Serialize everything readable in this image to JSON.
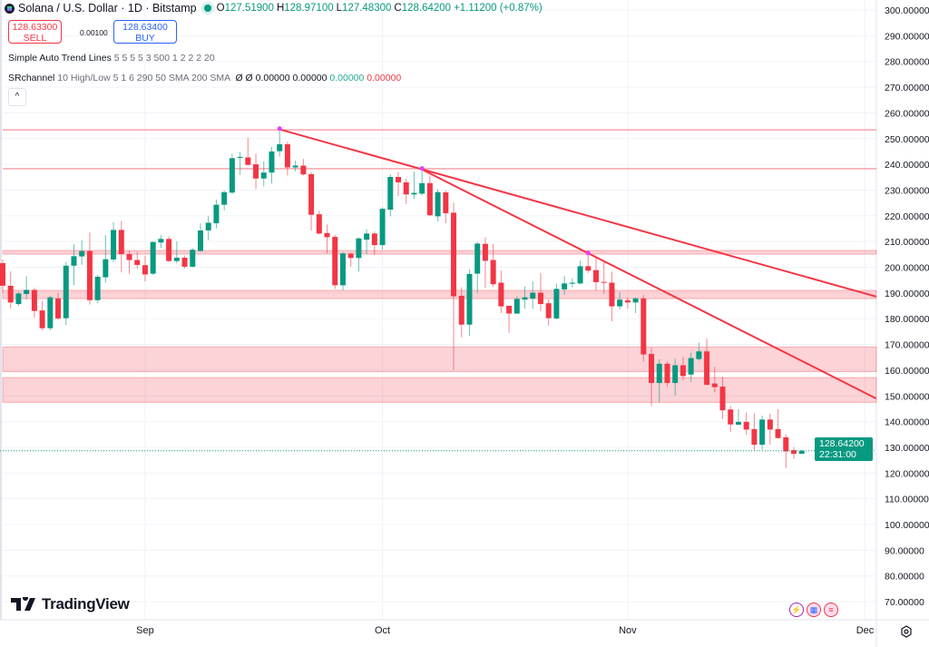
{
  "header": {
    "symbol_title": "Solana / U.S. Dollar · 1D · Bitstamp",
    "market_status": "open",
    "ohlc": {
      "o_label": "O",
      "o": "127.51900",
      "h_label": "H",
      "h": "128.97100",
      "l_label": "L",
      "l": "127.48300",
      "c_label": "C",
      "c": "128.64200"
    },
    "change": "+1.11200 (+0.87%)"
  },
  "trade": {
    "sell_price": "128.63300",
    "sell_label": "SELL",
    "spread": "0.00100",
    "buy_price": "128.63400",
    "buy_label": "BUY"
  },
  "indicators": [
    {
      "name": "Simple Auto Trend Lines",
      "params": "5 5 5 5 3 500 1 2 2 2 20"
    },
    {
      "name": "SRchannel",
      "params": "10 High/Low 5 1 6 290 50 SMA 200 SMA",
      "values": [
        "Ø",
        "Ø",
        "0.00000",
        "0.00000"
      ],
      "value_green": "0.00000",
      "value_red": "0.00000"
    }
  ],
  "collapse_label": "^",
  "brand": "TradingView",
  "last_price": {
    "price": "128.64200",
    "countdown": "22:31:00"
  },
  "colors": {
    "up": "#089981",
    "down": "#f23645",
    "zone": "#f23645",
    "trend": "#f23645",
    "pivot": "#e040fb",
    "grid": "#f0f3fa"
  },
  "chart_data": {
    "type": "candlestick",
    "title": "Solana / U.S. Dollar · 1D · Bitstamp",
    "ylim": [
      67,
      303
    ],
    "y_ticks": [
      "300.00000",
      "290.00000",
      "280.00000",
      "270.00000",
      "260.00000",
      "250.00000",
      "240.00000",
      "230.00000",
      "220.00000",
      "210.00000",
      "200.00000",
      "190.00000",
      "180.00000",
      "170.00000",
      "160.00000",
      "150.00000",
      "140.00000",
      "130.00000",
      "120.00000",
      "110.00000",
      "100.00000",
      "90.00000",
      "80.00000",
      "70.00000"
    ],
    "x_ticks": [
      {
        "label": "Sep",
        "at_candle": 18
      },
      {
        "label": "Oct",
        "at_candle": 48
      },
      {
        "label": "Nov",
        "at_candle": 79
      },
      {
        "label": "Dec",
        "at_candle": 109
      }
    ],
    "grid": true,
    "candles_ohlc": [
      [
        201.6,
        203,
        190,
        192.8
      ],
      [
        192.8,
        198.4,
        184,
        186.3
      ],
      [
        185.7,
        190.5,
        185,
        189.8
      ],
      [
        189.6,
        196.5,
        187.5,
        191.2
      ],
      [
        191.2,
        192,
        180.5,
        183.0
      ],
      [
        183.2,
        187,
        175.5,
        176.3
      ],
      [
        176.3,
        189,
        175.5,
        188.3
      ],
      [
        187.9,
        190,
        179.5,
        180.1
      ],
      [
        180.2,
        202,
        177.5,
        200.6
      ],
      [
        200.6,
        209,
        193,
        204.3
      ],
      [
        204.2,
        210.5,
        201,
        206.3
      ],
      [
        206.3,
        213.5,
        185.5,
        187.2
      ],
      [
        187.2,
        197,
        186,
        196.3
      ],
      [
        196.1,
        212.5,
        194,
        203.1
      ],
      [
        203.0,
        217.5,
        202,
        214.5
      ],
      [
        214.5,
        218,
        198,
        205.1
      ],
      [
        205.1,
        206.5,
        197.5,
        202.8
      ],
      [
        202.8,
        206,
        199.5,
        200.9
      ],
      [
        200.8,
        204.5,
        194.5,
        197.2
      ],
      [
        197.5,
        210,
        197,
        209.8
      ],
      [
        209.6,
        212.5,
        207.5,
        211.0
      ],
      [
        211.0,
        212,
        202,
        202.4
      ],
      [
        202.4,
        210,
        201.5,
        203.7
      ],
      [
        203.7,
        204.5,
        199.5,
        200.2
      ],
      [
        200.2,
        207.5,
        200,
        206.8
      ],
      [
        206.3,
        217,
        206,
        214.3
      ],
      [
        214.3,
        220,
        210.5,
        217.3
      ],
      [
        217.1,
        226.3,
        215.1,
        224.3
      ],
      [
        224.3,
        229.8,
        222.1,
        229.2
      ],
      [
        229.0,
        244.1,
        228.6,
        242.4
      ],
      [
        242.5,
        244.8,
        235.9,
        242.9
      ],
      [
        242.7,
        250.4,
        239.4,
        239.8
      ],
      [
        240.0,
        244.1,
        230.4,
        234.5
      ],
      [
        234.5,
        241.2,
        231.5,
        236.8
      ],
      [
        236.8,
        246.8,
        232.5,
        245.0
      ],
      [
        245.1,
        253.9,
        243.0,
        247.8
      ],
      [
        247.8,
        248.8,
        235.7,
        238.8
      ],
      [
        238.8,
        241.5,
        237.3,
        239.5
      ],
      [
        239.5,
        242.1,
        235.7,
        236.1
      ],
      [
        236.2,
        237.0,
        214.3,
        220.4
      ],
      [
        220.6,
        221.9,
        212.7,
        213.1
      ],
      [
        213.3,
        216.6,
        205.4,
        211.7
      ],
      [
        211.8,
        212.7,
        191.6,
        193.0
      ],
      [
        193.0,
        205.9,
        191.0,
        205.4
      ],
      [
        205.3,
        205.7,
        200.2,
        203.6
      ],
      [
        203.6,
        211.6,
        198.3,
        211.2
      ],
      [
        210.7,
        214.8,
        205.1,
        213.1
      ],
      [
        213.1,
        213.9,
        204.7,
        208.6
      ],
      [
        208.6,
        223.3,
        206.9,
        222.7
      ],
      [
        222.4,
        236.2,
        219.8,
        235.1
      ],
      [
        235.1,
        237.1,
        227.7,
        233.0
      ],
      [
        233.0,
        234.5,
        224.5,
        228.3
      ],
      [
        228.3,
        237.2,
        226.5,
        228.9
      ],
      [
        228.6,
        238.4,
        228.0,
        232.7
      ],
      [
        232.7,
        235.7,
        219.8,
        220.2
      ],
      [
        219.8,
        230.4,
        217.8,
        229.2
      ],
      [
        229.1,
        229.8,
        217.1,
        221.0
      ],
      [
        221.2,
        225.1,
        160.2,
        188.7
      ],
      [
        188.9,
        192.2,
        172.8,
        177.7
      ],
      [
        177.7,
        199.2,
        173.4,
        197.4
      ],
      [
        197.5,
        209.8,
        190.1,
        209.2
      ],
      [
        209.1,
        211.6,
        191.8,
        202.5
      ],
      [
        202.8,
        209.1,
        192.4,
        193.4
      ],
      [
        194.0,
        198.7,
        182.2,
        184.8
      ],
      [
        185.0,
        185.1,
        174.5,
        182.0
      ],
      [
        182.0,
        188.7,
        181.8,
        187.7
      ],
      [
        187.4,
        192.5,
        183.9,
        188.3
      ],
      [
        187.8,
        194.5,
        183.9,
        190.1
      ],
      [
        190.1,
        197.8,
        183.0,
        185.7
      ],
      [
        186.0,
        187.5,
        177.3,
        180.2
      ],
      [
        180.1,
        193.7,
        179.8,
        191.6
      ],
      [
        191.4,
        196.7,
        189.3,
        193.7
      ],
      [
        193.6,
        195.7,
        192.2,
        194.0
      ],
      [
        193.7,
        202.5,
        193.4,
        200.4
      ],
      [
        200.4,
        205.5,
        197.8,
        198.7
      ],
      [
        198.9,
        203.9,
        190.8,
        194.2
      ],
      [
        194.3,
        202.2,
        189.6,
        194.1
      ],
      [
        194.0,
        198.3,
        179.0,
        184.8
      ],
      [
        184.8,
        190.4,
        183.7,
        187.4
      ],
      [
        187.2,
        188.1,
        183.9,
        186.3
      ],
      [
        186.3,
        188.3,
        182.2,
        187.9
      ],
      [
        187.9,
        189.2,
        163.4,
        166.1
      ],
      [
        166.3,
        168.7,
        146.0,
        155.0
      ],
      [
        155.0,
        164.2,
        147.5,
        162.5
      ],
      [
        162.5,
        163.4,
        153.6,
        155.0
      ],
      [
        155.0,
        164.5,
        150.1,
        161.9
      ],
      [
        161.9,
        165.1,
        156.0,
        157.7
      ],
      [
        158.3,
        166.8,
        155.4,
        164.7
      ],
      [
        164.3,
        170.8,
        163.7,
        167.3
      ],
      [
        167.3,
        172.4,
        154.0,
        154.3
      ],
      [
        154.8,
        161.3,
        151.3,
        153.4
      ],
      [
        153.6,
        157.4,
        141.0,
        144.4
      ],
      [
        144.7,
        146.1,
        136.0,
        138.9
      ],
      [
        138.8,
        144.8,
        138.6,
        139.9
      ],
      [
        139.9,
        143.6,
        134.8,
        136.9
      ],
      [
        137.1,
        143.1,
        129.0,
        131.0
      ],
      [
        131.0,
        142.3,
        129.0,
        140.8
      ],
      [
        140.8,
        143.1,
        131.0,
        136.9
      ],
      [
        137.1,
        144.8,
        133.4,
        133.6
      ],
      [
        133.9,
        135.1,
        121.9,
        128.4
      ],
      [
        128.9,
        130.1,
        125.5,
        127.5
      ],
      [
        127.519,
        128.971,
        127.483,
        128.642
      ]
    ],
    "sr_lines": [
      253.4,
      238.3
    ],
    "sr_zones": [
      [
        205.1,
        206.5
      ],
      [
        187.8,
        191.0
      ],
      [
        159.4,
        169.0
      ],
      [
        147.5,
        157.1
      ]
    ],
    "trend_lines": [
      {
        "from": [
          35,
          253.6
        ],
        "to": [
          110.4,
          188.6
        ]
      },
      {
        "from": [
          53,
          238.0
        ],
        "to": [
          110.4,
          149.0
        ]
      }
    ],
    "pivots": [
      [
        35,
        253.9
      ],
      [
        53,
        238.4
      ],
      [
        74,
        205.5
      ]
    ],
    "current_price": 128.642
  }
}
